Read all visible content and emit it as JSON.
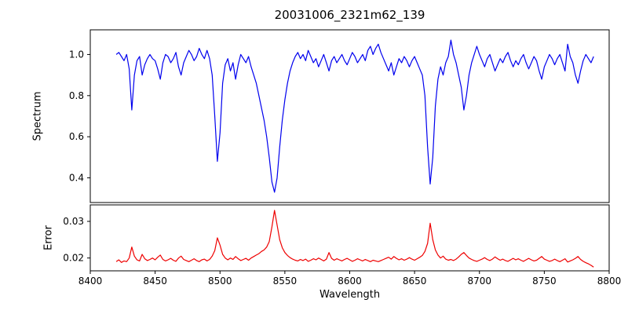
{
  "chart_data": {
    "type": "line",
    "title": "20031006_2321m62_139",
    "xlabel": "Wavelength",
    "xlim": [
      8400,
      8800
    ],
    "x_start": 8420,
    "x_step": 2,
    "x_ticks": [
      8400,
      8450,
      8500,
      8550,
      8600,
      8650,
      8700,
      8750,
      8800
    ],
    "x_tick_labels": [
      "8400",
      "8450",
      "8500",
      "8550",
      "8600",
      "8650",
      "8700",
      "8750",
      "8800"
    ],
    "grid": false,
    "legend": "none",
    "panels": [
      {
        "name": "spectrum",
        "ylabel": "Spectrum",
        "color": "#0000ee",
        "ylim": [
          0.28,
          1.12
        ],
        "y_ticks": [
          0.4,
          0.6,
          0.8,
          1.0
        ],
        "y_tick_labels": [
          "0.4",
          "0.6",
          "0.8",
          "1.0"
        ],
        "values": [
          1.0,
          1.01,
          0.99,
          0.97,
          1.0,
          0.93,
          0.73,
          0.9,
          0.97,
          0.99,
          0.9,
          0.95,
          0.98,
          1.0,
          0.98,
          0.97,
          0.93,
          0.88,
          0.96,
          1.0,
          0.99,
          0.96,
          0.98,
          1.01,
          0.94,
          0.9,
          0.96,
          0.99,
          1.02,
          1.0,
          0.97,
          0.99,
          1.03,
          1.0,
          0.98,
          1.02,
          0.98,
          0.9,
          0.7,
          0.48,
          0.62,
          0.86,
          0.95,
          0.98,
          0.92,
          0.96,
          0.88,
          0.95,
          1.0,
          0.98,
          0.96,
          0.99,
          0.94,
          0.9,
          0.86,
          0.8,
          0.74,
          0.68,
          0.6,
          0.5,
          0.38,
          0.33,
          0.4,
          0.55,
          0.68,
          0.78,
          0.86,
          0.92,
          0.96,
          0.99,
          1.01,
          0.98,
          1.0,
          0.97,
          1.02,
          0.99,
          0.96,
          0.98,
          0.94,
          0.97,
          1.0,
          0.96,
          0.92,
          0.97,
          0.99,
          0.96,
          0.98,
          1.0,
          0.97,
          0.95,
          0.98,
          1.01,
          0.99,
          0.96,
          0.98,
          1.0,
          0.97,
          1.02,
          1.04,
          1.0,
          1.03,
          1.05,
          1.01,
          0.98,
          0.95,
          0.92,
          0.96,
          0.9,
          0.94,
          0.98,
          0.96,
          0.99,
          0.97,
          0.94,
          0.97,
          0.99,
          0.96,
          0.93,
          0.9,
          0.8,
          0.55,
          0.37,
          0.5,
          0.75,
          0.88,
          0.94,
          0.9,
          0.96,
          0.99,
          1.07,
          1.0,
          0.96,
          0.9,
          0.84,
          0.73,
          0.8,
          0.9,
          0.96,
          1.0,
          1.04,
          1.0,
          0.97,
          0.94,
          0.98,
          1.0,
          0.96,
          0.92,
          0.95,
          0.98,
          0.96,
          0.99,
          1.01,
          0.97,
          0.94,
          0.97,
          0.95,
          0.98,
          1.0,
          0.96,
          0.93,
          0.96,
          0.99,
          0.97,
          0.92,
          0.88,
          0.94,
          0.97,
          1.0,
          0.98,
          0.95,
          0.98,
          1.0,
          0.96,
          0.92,
          1.05,
          0.99,
          0.96,
          0.9,
          0.86,
          0.92,
          0.97,
          1.0,
          0.98,
          0.96,
          0.99
        ]
      },
      {
        "name": "error",
        "ylabel": "Error",
        "color": "#ee0000",
        "ylim": [
          0.0165,
          0.0345
        ],
        "y_ticks": [
          0.02,
          0.03
        ],
        "y_tick_labels": [
          "0.02",
          "0.03"
        ],
        "values": [
          0.019,
          0.0195,
          0.0188,
          0.0192,
          0.019,
          0.02,
          0.023,
          0.0205,
          0.0195,
          0.0192,
          0.021,
          0.0198,
          0.0193,
          0.0196,
          0.02,
          0.0195,
          0.0202,
          0.0208,
          0.0196,
          0.0192,
          0.0195,
          0.0199,
          0.0194,
          0.0191,
          0.02,
          0.0205,
          0.0196,
          0.0193,
          0.019,
          0.0194,
          0.0198,
          0.0193,
          0.019,
          0.0195,
          0.0197,
          0.0192,
          0.0196,
          0.0205,
          0.022,
          0.0255,
          0.0235,
          0.021,
          0.02,
          0.0195,
          0.02,
          0.0196,
          0.0204,
          0.0198,
          0.0193,
          0.0196,
          0.0199,
          0.0194,
          0.02,
          0.0204,
          0.0208,
          0.0212,
          0.0218,
          0.0222,
          0.023,
          0.0245,
          0.0285,
          0.033,
          0.029,
          0.025,
          0.0228,
          0.0215,
          0.0207,
          0.0201,
          0.0197,
          0.0194,
          0.0192,
          0.0196,
          0.0193,
          0.0197,
          0.0191,
          0.0194,
          0.0198,
          0.0195,
          0.02,
          0.0196,
          0.0192,
          0.0197,
          0.0215,
          0.0199,
          0.0194,
          0.0198,
          0.0195,
          0.0192,
          0.0196,
          0.0199,
          0.0195,
          0.0191,
          0.0194,
          0.0198,
          0.0195,
          0.0192,
          0.0196,
          0.0193,
          0.019,
          0.0194,
          0.0192,
          0.019,
          0.0193,
          0.0196,
          0.0199,
          0.0202,
          0.0197,
          0.0204,
          0.0199,
          0.0195,
          0.0198,
          0.0194,
          0.0197,
          0.0201,
          0.0197,
          0.0194,
          0.0198,
          0.0202,
          0.0207,
          0.0218,
          0.024,
          0.0295,
          0.025,
          0.0222,
          0.0208,
          0.02,
          0.0205,
          0.0197,
          0.0194,
          0.0196,
          0.0193,
          0.0197,
          0.0203,
          0.021,
          0.0215,
          0.0207,
          0.02,
          0.0196,
          0.0193,
          0.0191,
          0.0194,
          0.0197,
          0.0201,
          0.0196,
          0.0193,
          0.0197,
          0.0203,
          0.0198,
          0.0194,
          0.0197,
          0.0193,
          0.0191,
          0.0195,
          0.0199,
          0.0195,
          0.0198,
          0.0194,
          0.0191,
          0.0195,
          0.0199,
          0.0195,
          0.0192,
          0.0194,
          0.0199,
          0.0204,
          0.0197,
          0.0194,
          0.0191,
          0.0193,
          0.0197,
          0.0193,
          0.019,
          0.0194,
          0.0198,
          0.0189,
          0.0192,
          0.0195,
          0.0199,
          0.0204,
          0.0196,
          0.0191,
          0.0187,
          0.0184,
          0.018,
          0.0175
        ]
      }
    ]
  }
}
